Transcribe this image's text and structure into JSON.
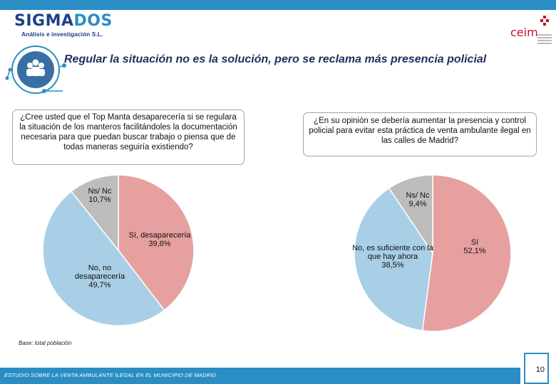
{
  "header": {
    "logo_main": "SIGMA",
    "logo_accent": "DOS",
    "logo_sub": "Análisis e investigación S.L.",
    "partner_logo": "ceim"
  },
  "title": "Regular la situación no es la solución, pero se reclama más presencia policial",
  "colors": {
    "accent": "#2a8ec4",
    "pie_red": "#e6a0a0",
    "pie_blue": "#a9cfe6",
    "pie_gray": "#bdbdbd"
  },
  "chart_data": [
    {
      "type": "pie",
      "title": "¿Cree usted que el Top Manta desaparecería si se regulara la situación de los manteros facilitándoles la documentación necesaria para que puedan buscar trabajo o piensa que de todas maneras seguiría existiendo?",
      "slices": [
        {
          "label": "Sí, desaparecería",
          "value": 39.6,
          "display": "39,6%",
          "color": "#e6a0a0"
        },
        {
          "label": "No, no desaparecería",
          "value": 49.7,
          "display": "49,7%",
          "color": "#a9cfe6"
        },
        {
          "label": "Ns/ Nc",
          "value": 10.7,
          "display": "10,7%",
          "color": "#bdbdbd"
        }
      ]
    },
    {
      "type": "pie",
      "title": "¿En su opinión se debería aumentar la presencia y control policial para evitar esta práctica de venta ambulante ilegal en las calles de Madrid?",
      "slices": [
        {
          "label": "Sí",
          "value": 52.1,
          "display": "52,1%",
          "color": "#e6a0a0"
        },
        {
          "label": "No, es suficiente con la que hay ahora",
          "value": 38.5,
          "display": "38,5%",
          "color": "#a9cfe6"
        },
        {
          "label": "Ns/ Nc",
          "value": 9.4,
          "display": "9,4%",
          "color": "#bdbdbd"
        }
      ]
    }
  ],
  "base_note": "Base: total población",
  "footer": "ESTUDIO SOBRE LA VENTA AMBULANTE ILEGAL EN EL MUNICIPIO DE MADRID",
  "page_number": "10"
}
